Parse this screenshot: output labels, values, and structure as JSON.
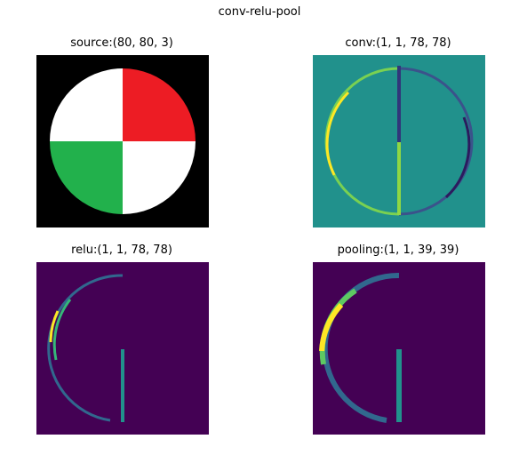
{
  "figure": {
    "title": "conv-relu-pool"
  },
  "panels": [
    {
      "title": "source:(80, 80, 3)",
      "image": "quartered-disc-image"
    },
    {
      "title": "conv:(1, 1, 78, 78)",
      "image": "edge-response-image"
    },
    {
      "title": "relu:(1, 1, 78, 78)",
      "image": "relu-activation-image"
    },
    {
      "title": "pooling:(1, 1, 39, 39)",
      "image": "pooled-activation-image"
    }
  ],
  "colors": {
    "source_background": "#000000",
    "source_white": "#ffffff",
    "source_red": "#ed1c24",
    "source_green": "#22b14c",
    "viridis_low": "#440154",
    "viridis_mid": "#21918c",
    "viridis_high": "#fde725"
  }
}
